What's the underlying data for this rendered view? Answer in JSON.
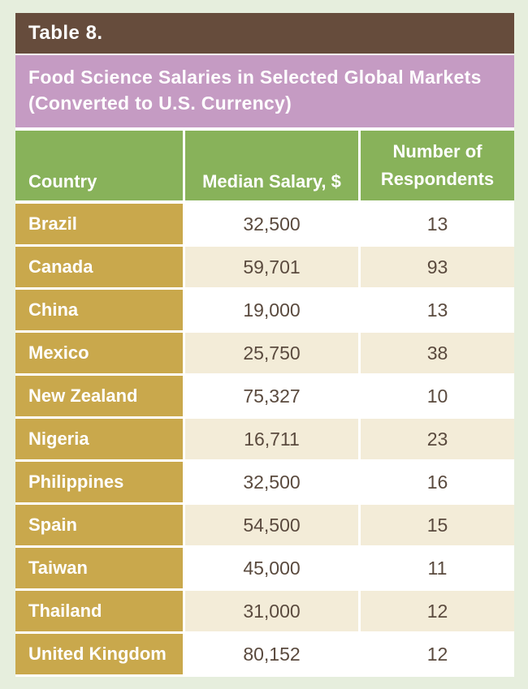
{
  "table": {
    "label": "Table 8.",
    "title_line1": "Food Science Salaries in Selected Global Markets",
    "title_line2": "(Converted to U.S. Currency)",
    "headers": {
      "country": "Country",
      "salary": "Median Salary, $",
      "respondents_line1": "Number of",
      "respondents_line2": "Respondents"
    },
    "rows": [
      {
        "country": "Brazil",
        "salary": "32,500",
        "respondents": "13"
      },
      {
        "country": "Canada",
        "salary": "59,701",
        "respondents": "93"
      },
      {
        "country": "China",
        "salary": "19,000",
        "respondents": "13"
      },
      {
        "country": "Mexico",
        "salary": "25,750",
        "respondents": "38"
      },
      {
        "country": "New Zealand",
        "salary": "75,327",
        "respondents": "10"
      },
      {
        "country": "Nigeria",
        "salary": "16,711",
        "respondents": "23"
      },
      {
        "country": "Philippines",
        "salary": "32,500",
        "respondents": "16"
      },
      {
        "country": "Spain",
        "salary": "54,500",
        "respondents": "15"
      },
      {
        "country": "Taiwan",
        "salary": "45,000",
        "respondents": "11"
      },
      {
        "country": "Thailand",
        "salary": "31,000",
        "respondents": "12"
      },
      {
        "country": "United Kingdom",
        "salary": "80,152",
        "respondents": "12"
      }
    ]
  },
  "colors": {
    "page_bg": "#e6eedd",
    "title_bar": "#664c3c",
    "subtitle_bar": "#c59bc3",
    "header_bg": "#88b25a",
    "country_cell": "#c9a84c",
    "alt_row": "#f3ecd8",
    "value_text": "#5a4a3e"
  }
}
